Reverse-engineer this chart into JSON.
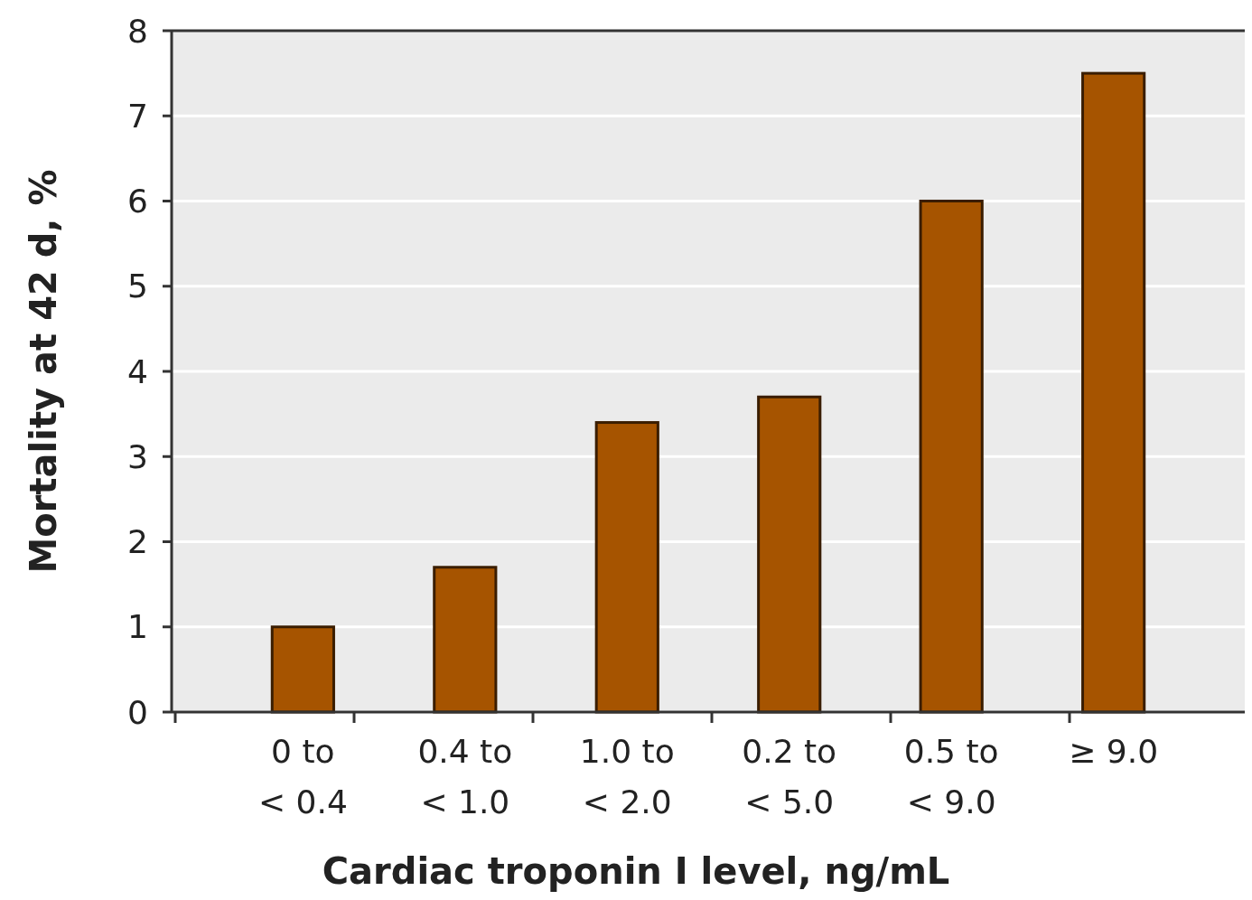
{
  "chart_data": {
    "type": "bar",
    "xlabel": "Cardiac troponin I level, ng/mL",
    "ylabel": "Mortality at 42 d, %",
    "categories": [
      "0 to\n< 0.4",
      "0.4 to\n< 1.0",
      "1.0 to\n< 2.0",
      "0.2 to\n< 5.0",
      "0.5 to\n< 9.0",
      "≥ 9.0"
    ],
    "values": [
      1.0,
      1.7,
      3.4,
      3.7,
      6.0,
      7.5
    ],
    "color": "#a65400",
    "ylim": [
      0,
      8
    ],
    "yticks": [
      0,
      1,
      2,
      3,
      4,
      5,
      6,
      7,
      8
    ],
    "grid": "y"
  }
}
